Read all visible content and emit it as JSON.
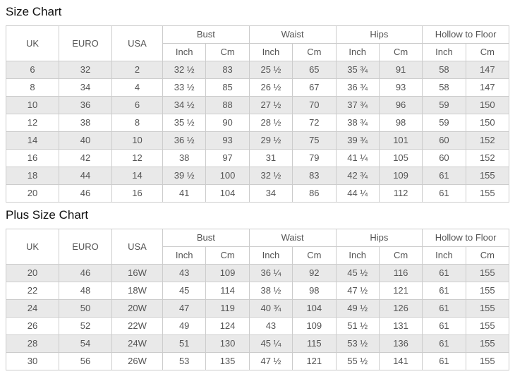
{
  "colors": {
    "border": "#cccccc",
    "stripe_row": "#e9e9e9",
    "header_background": "#ffffff",
    "cell_text": "#555555",
    "title_text": "#111111",
    "page_background": "#ffffff"
  },
  "chart_data": [
    {
      "type": "table",
      "title": "Size Chart",
      "simple_columns": [
        "UK",
        "EURO",
        "USA"
      ],
      "group_columns": [
        {
          "label": "Bust",
          "sub": [
            "Inch",
            "Cm"
          ]
        },
        {
          "label": "Waist",
          "sub": [
            "Inch",
            "Cm"
          ]
        },
        {
          "label": "Hips",
          "sub": [
            "Inch",
            "Cm"
          ]
        },
        {
          "label": "Hollow to Floor",
          "sub": [
            "Inch",
            "Cm"
          ]
        }
      ],
      "rows": [
        [
          "6",
          "32",
          "2",
          "32 ½",
          "83",
          "25 ½",
          "65",
          "35 ¾",
          "91",
          "58",
          "147"
        ],
        [
          "8",
          "34",
          "4",
          "33 ½",
          "85",
          "26 ½",
          "67",
          "36 ¾",
          "93",
          "58",
          "147"
        ],
        [
          "10",
          "36",
          "6",
          "34 ½",
          "88",
          "27 ½",
          "70",
          "37 ¾",
          "96",
          "59",
          "150"
        ],
        [
          "12",
          "38",
          "8",
          "35 ½",
          "90",
          "28 ½",
          "72",
          "38 ¾",
          "98",
          "59",
          "150"
        ],
        [
          "14",
          "40",
          "10",
          "36 ½",
          "93",
          "29 ½",
          "75",
          "39 ¾",
          "101",
          "60",
          "152"
        ],
        [
          "16",
          "42",
          "12",
          "38",
          "97",
          "31",
          "79",
          "41 ¼",
          "105",
          "60",
          "152"
        ],
        [
          "18",
          "44",
          "14",
          "39 ½",
          "100",
          "32 ½",
          "83",
          "42 ¾",
          "109",
          "61",
          "155"
        ],
        [
          "20",
          "46",
          "16",
          "41",
          "104",
          "34",
          "86",
          "44 ¼",
          "112",
          "61",
          "155"
        ]
      ]
    },
    {
      "type": "table",
      "title": "Plus Size Chart",
      "simple_columns": [
        "UK",
        "EURO",
        "USA"
      ],
      "group_columns": [
        {
          "label": "Bust",
          "sub": [
            "Inch",
            "Cm"
          ]
        },
        {
          "label": "Waist",
          "sub": [
            "Inch",
            "Cm"
          ]
        },
        {
          "label": "Hips",
          "sub": [
            "Inch",
            "Cm"
          ]
        },
        {
          "label": "Hollow to Floor",
          "sub": [
            "Inch",
            "Cm"
          ]
        }
      ],
      "rows": [
        [
          "20",
          "46",
          "16W",
          "43",
          "109",
          "36 ¼",
          "92",
          "45 ½",
          "116",
          "61",
          "155"
        ],
        [
          "22",
          "48",
          "18W",
          "45",
          "114",
          "38 ½",
          "98",
          "47 ½",
          "121",
          "61",
          "155"
        ],
        [
          "24",
          "50",
          "20W",
          "47",
          "119",
          "40 ¾",
          "104",
          "49 ½",
          "126",
          "61",
          "155"
        ],
        [
          "26",
          "52",
          "22W",
          "49",
          "124",
          "43",
          "109",
          "51 ½",
          "131",
          "61",
          "155"
        ],
        [
          "28",
          "54",
          "24W",
          "51",
          "130",
          "45 ¼",
          "115",
          "53 ½",
          "136",
          "61",
          "155"
        ],
        [
          "30",
          "56",
          "26W",
          "53",
          "135",
          "47 ½",
          "121",
          "55 ½",
          "141",
          "61",
          "155"
        ]
      ]
    }
  ]
}
